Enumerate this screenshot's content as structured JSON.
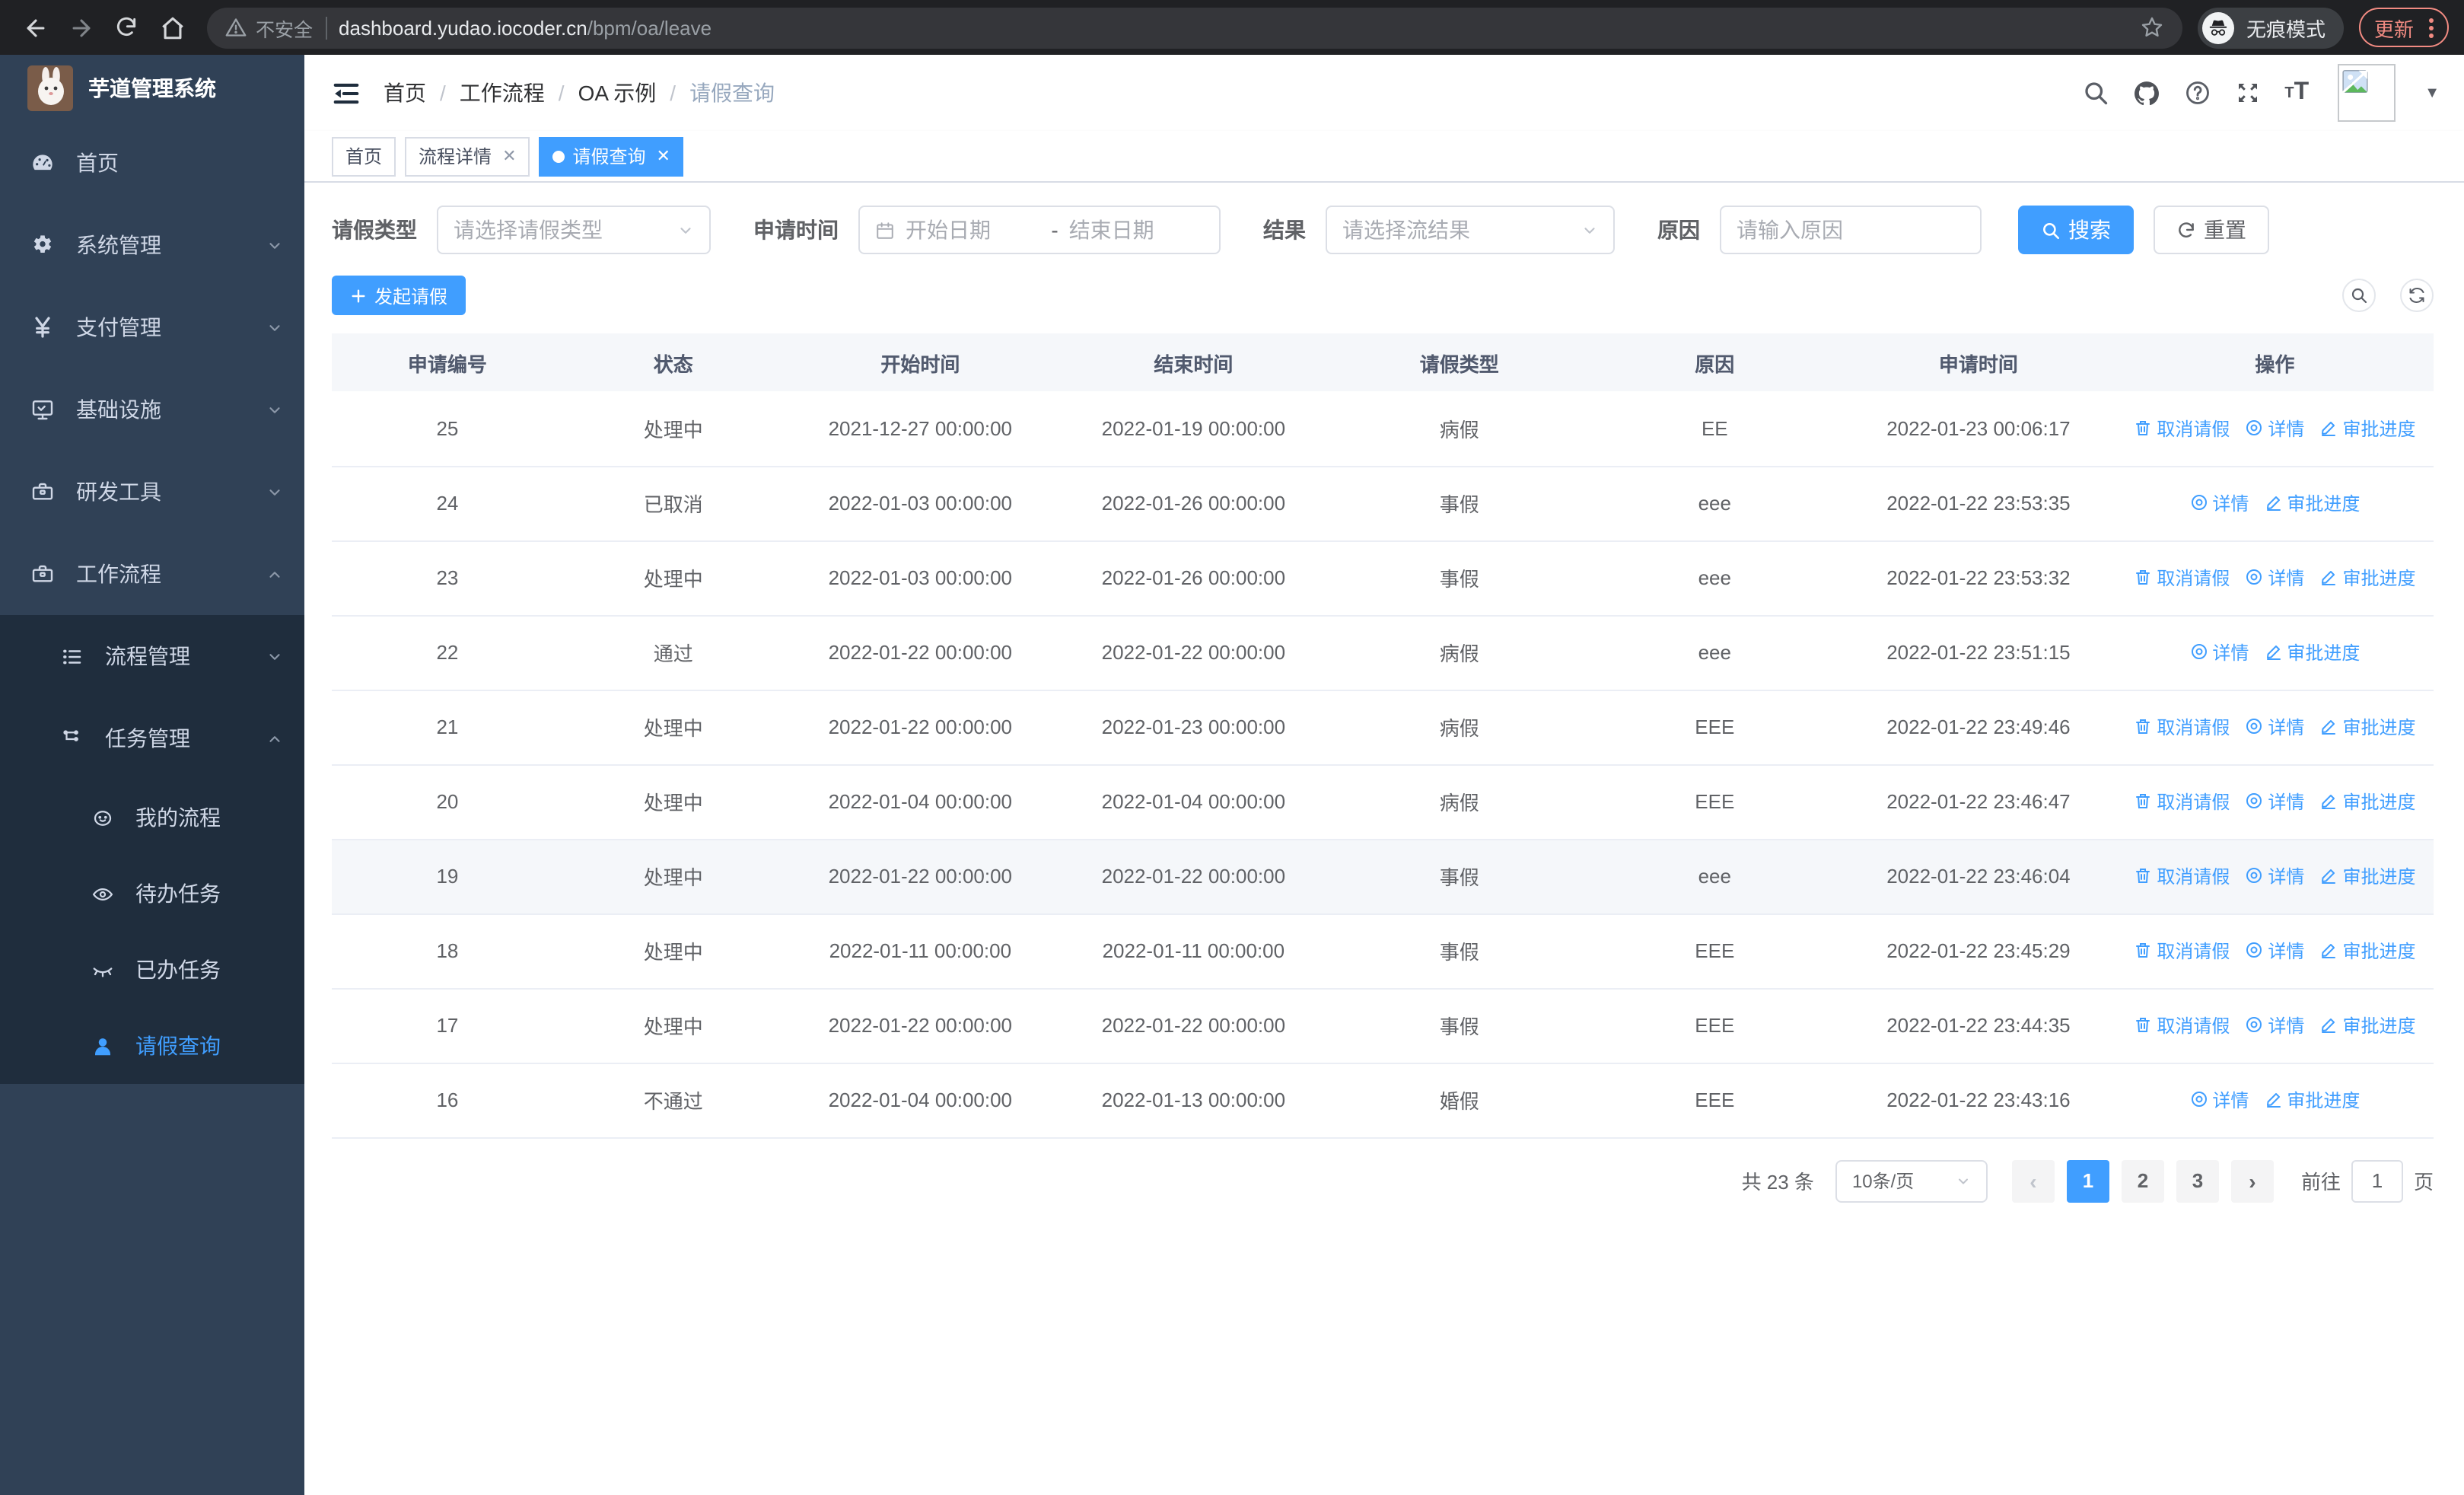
{
  "browser": {
    "security_label": "不安全",
    "url_host": "dashboard.yudao.iocoder.cn",
    "url_path": "/bpm/oa/leave",
    "incognito_label": "无痕模式",
    "update_label": "更新"
  },
  "sidebar": {
    "title": "芋道管理系统",
    "items": [
      {
        "label": "首页"
      },
      {
        "label": "系统管理"
      },
      {
        "label": "支付管理"
      },
      {
        "label": "基础设施"
      },
      {
        "label": "研发工具"
      },
      {
        "label": "工作流程"
      },
      {
        "label": "流程管理"
      },
      {
        "label": "任务管理"
      },
      {
        "label": "我的流程"
      },
      {
        "label": "待办任务"
      },
      {
        "label": "已办任务"
      },
      {
        "label": "请假查询"
      }
    ]
  },
  "header": {
    "breadcrumb": [
      "首页",
      "工作流程",
      "OA 示例",
      "请假查询"
    ]
  },
  "tabs": [
    {
      "label": "首页",
      "closable": false,
      "active": false
    },
    {
      "label": "流程详情",
      "closable": true,
      "active": false
    },
    {
      "label": "请假查询",
      "closable": true,
      "active": true
    }
  ],
  "filters": {
    "leave_type_label": "请假类型",
    "leave_type_placeholder": "请选择请假类型",
    "apply_time_label": "申请时间",
    "start_date_placeholder": "开始日期",
    "date_separator": "-",
    "end_date_placeholder": "结束日期",
    "result_label": "结果",
    "result_placeholder": "请选择流结果",
    "reason_label": "原因",
    "reason_placeholder": "请输入原因",
    "search_label": "搜索",
    "reset_label": "重置"
  },
  "toolbar": {
    "create_label": "发起请假"
  },
  "table": {
    "headers": [
      "申请编号",
      "状态",
      "开始时间",
      "结束时间",
      "请假类型",
      "原因",
      "申请时间",
      "操作"
    ],
    "action_labels": {
      "cancel": "取消请假",
      "detail": "详情",
      "progress": "审批进度"
    },
    "rows": [
      {
        "id": "25",
        "status": "处理中",
        "start": "2021-12-27 00:00:00",
        "end": "2022-01-19 00:00:00",
        "type": "病假",
        "reason": "EE",
        "apply": "2022-01-23 00:06:17",
        "actions": [
          "cancel",
          "detail",
          "progress"
        ],
        "highlight": false
      },
      {
        "id": "24",
        "status": "已取消",
        "start": "2022-01-03 00:00:00",
        "end": "2022-01-26 00:00:00",
        "type": "事假",
        "reason": "eee",
        "apply": "2022-01-22 23:53:35",
        "actions": [
          "detail",
          "progress"
        ],
        "highlight": false
      },
      {
        "id": "23",
        "status": "处理中",
        "start": "2022-01-03 00:00:00",
        "end": "2022-01-26 00:00:00",
        "type": "事假",
        "reason": "eee",
        "apply": "2022-01-22 23:53:32",
        "actions": [
          "cancel",
          "detail",
          "progress"
        ],
        "highlight": false
      },
      {
        "id": "22",
        "status": "通过",
        "start": "2022-01-22 00:00:00",
        "end": "2022-01-22 00:00:00",
        "type": "病假",
        "reason": "eee",
        "apply": "2022-01-22 23:51:15",
        "actions": [
          "detail",
          "progress"
        ],
        "highlight": false
      },
      {
        "id": "21",
        "status": "处理中",
        "start": "2022-01-22 00:00:00",
        "end": "2022-01-23 00:00:00",
        "type": "病假",
        "reason": "EEE",
        "apply": "2022-01-22 23:49:46",
        "actions": [
          "cancel",
          "detail",
          "progress"
        ],
        "highlight": false
      },
      {
        "id": "20",
        "status": "处理中",
        "start": "2022-01-04 00:00:00",
        "end": "2022-01-04 00:00:00",
        "type": "病假",
        "reason": "EEE",
        "apply": "2022-01-22 23:46:47",
        "actions": [
          "cancel",
          "detail",
          "progress"
        ],
        "highlight": false
      },
      {
        "id": "19",
        "status": "处理中",
        "start": "2022-01-22 00:00:00",
        "end": "2022-01-22 00:00:00",
        "type": "事假",
        "reason": "eee",
        "apply": "2022-01-22 23:46:04",
        "actions": [
          "cancel",
          "detail",
          "progress"
        ],
        "highlight": true
      },
      {
        "id": "18",
        "status": "处理中",
        "start": "2022-01-11 00:00:00",
        "end": "2022-01-11 00:00:00",
        "type": "事假",
        "reason": "EEE",
        "apply": "2022-01-22 23:45:29",
        "actions": [
          "cancel",
          "detail",
          "progress"
        ],
        "highlight": false
      },
      {
        "id": "17",
        "status": "处理中",
        "start": "2022-01-22 00:00:00",
        "end": "2022-01-22 00:00:00",
        "type": "事假",
        "reason": "EEE",
        "apply": "2022-01-22 23:44:35",
        "actions": [
          "cancel",
          "detail",
          "progress"
        ],
        "highlight": false
      },
      {
        "id": "16",
        "status": "不通过",
        "start": "2022-01-04 00:00:00",
        "end": "2022-01-13 00:00:00",
        "type": "婚假",
        "reason": "EEE",
        "apply": "2022-01-22 23:43:16",
        "actions": [
          "detail",
          "progress"
        ],
        "highlight": false
      }
    ]
  },
  "pagination": {
    "total": "共 23 条",
    "page_size": "10条/页",
    "pages": [
      "1",
      "2",
      "3"
    ],
    "current": "1",
    "goto_label": "前往",
    "goto_value": "1",
    "goto_unit": "页"
  },
  "colors": {
    "accent": "#409eff",
    "sidebar_bg": "#304156",
    "submenu_bg": "#1f2d3d",
    "update_accent": "#f28b82"
  }
}
